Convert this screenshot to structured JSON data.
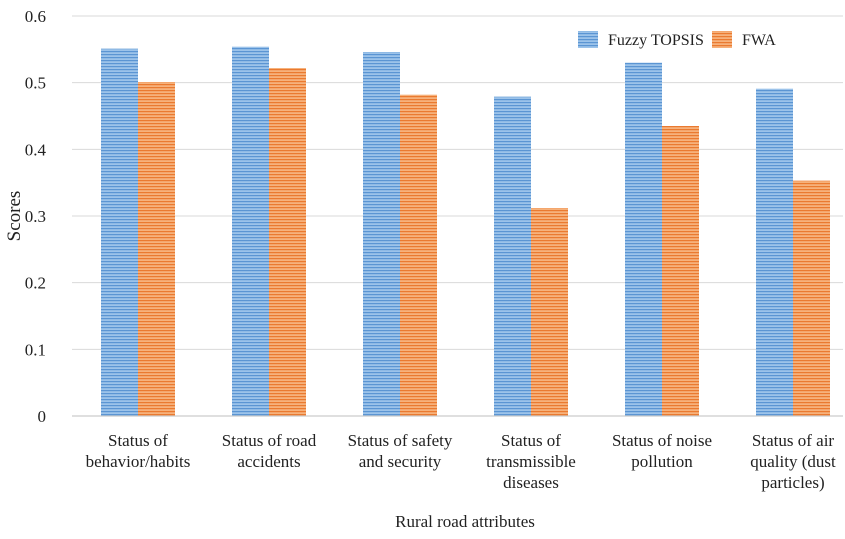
{
  "chart_data": {
    "type": "bar",
    "title": "",
    "xlabel": "Rural road attributes",
    "ylabel": "Scores",
    "ylim": [
      0,
      0.6
    ],
    "yticks": [
      "0",
      "0.1",
      "0.2",
      "0.3",
      "0.4",
      "0.5",
      "0.6"
    ],
    "grid": true,
    "legend_position": "top-right",
    "categories": [
      [
        "Status of",
        "behavior/habits"
      ],
      [
        "Status of road",
        "accidents"
      ],
      [
        "Status of safety",
        "and security"
      ],
      [
        "Status of",
        "transmissible",
        "diseases"
      ],
      [
        "Status of noise",
        "pollution"
      ],
      [
        "Status of air",
        "quality (dust",
        "particles)"
      ]
    ],
    "series": [
      {
        "name": "Fuzzy TOPSIS",
        "color": "#6fa8dc",
        "values": [
          0.551,
          0.554,
          0.546,
          0.479,
          0.53,
          0.491
        ]
      },
      {
        "name": "FWA",
        "color": "#f0883e",
        "values": [
          0.501,
          0.522,
          0.482,
          0.312,
          0.435,
          0.353
        ]
      }
    ]
  }
}
